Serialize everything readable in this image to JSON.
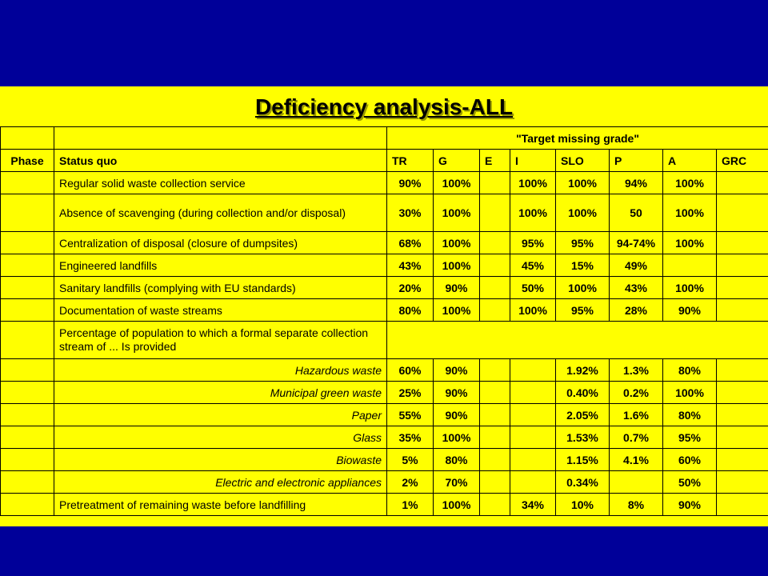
{
  "title": "Deficiency analysis-ALL",
  "colors": {
    "background": "#000099",
    "slide": "#FFFF00"
  },
  "table": {
    "group_header": "\"Target missing grade\"",
    "headers": [
      "Phase",
      "Status quo",
      "TR",
      "G",
      "E",
      "I",
      "SLO",
      "P",
      "A",
      "GRC"
    ],
    "rows": [
      {
        "label": "Regular solid waste collection service",
        "values": [
          "90%",
          "100%",
          "",
          "100%",
          "100%",
          "94%",
          "100%",
          ""
        ]
      },
      {
        "label": "Absence of scavenging (during collection and/or disposal)",
        "values": [
          "30%",
          "100%",
          "",
          "100%",
          "100%",
          "50",
          "100%",
          ""
        ]
      },
      {
        "label": "Centralization of disposal (closure of dumpsites)",
        "values": [
          "68%",
          "100%",
          "",
          "95%",
          "95%",
          "94-74%",
          "100%",
          ""
        ]
      },
      {
        "label": "Engineered landfills",
        "values": [
          "43%",
          "100%",
          "",
          "45%",
          "15%",
          "49%",
          "",
          ""
        ]
      },
      {
        "label": "Sanitary landfills (complying with EU standards)",
        "values": [
          "20%",
          "90%",
          "",
          "50%",
          "100%",
          "43%",
          "100%",
          ""
        ]
      },
      {
        "label": "Documentation of waste streams",
        "values": [
          "80%",
          "100%",
          "",
          "100%",
          "95%",
          "28%",
          "90%",
          ""
        ]
      },
      {
        "label": "Percentage of population to which a formal separate collection stream of ... Is provided",
        "values": []
      },
      {
        "label": "Hazardous waste",
        "values": [
          "60%",
          "90%",
          "",
          "",
          "1.92%",
          "1.3%",
          "80%",
          ""
        ]
      },
      {
        "label": "Municipal green waste",
        "values": [
          "25%",
          "90%",
          "",
          "",
          "0.40%",
          "0.2%",
          "100%",
          ""
        ]
      },
      {
        "label": "Paper",
        "values": [
          "55%",
          "90%",
          "",
          "",
          "2.05%",
          "1.6%",
          "80%",
          ""
        ]
      },
      {
        "label": "Glass",
        "values": [
          "35%",
          "100%",
          "",
          "",
          "1.53%",
          "0.7%",
          "95%",
          ""
        ]
      },
      {
        "label": "Biowaste",
        "values": [
          "5%",
          "80%",
          "",
          "",
          "1.15%",
          "4.1%",
          "60%",
          ""
        ]
      },
      {
        "label": "Electric and electronic appliances",
        "values": [
          "2%",
          "70%",
          "",
          "",
          "0.34%",
          "",
          "50%",
          ""
        ]
      },
      {
        "label": "Pretreatment of remaining waste before landfilling",
        "values": [
          "1%",
          "100%",
          "",
          "34%",
          "10%",
          "8%",
          "90%",
          ""
        ]
      }
    ]
  }
}
